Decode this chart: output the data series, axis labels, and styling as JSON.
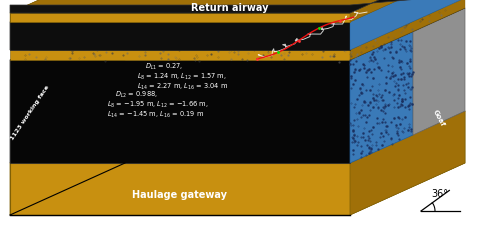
{
  "return_airway_text": "Return airway",
  "haulage_gateway_text": "Haulage gateway",
  "working_face_text": "1123 working face",
  "goaf_text": "Goaf",
  "angle_text": "36°",
  "text_block1_line1": "$D_{L1}$ = 0.27,",
  "text_block1_line2": "$L_8$ = 1.24 m, $L_{12}$ = 1.57 m,",
  "text_block1_line3": "$L_{14}$ = 2.27 m, $L_{16}$ = 3.04 m",
  "text_block2_line1": "$D_{L2}$ = 0.988,",
  "text_block2_line2": "$L_8$ = −1.95 m, $L_{12}$ = −1.66 m,",
  "text_block2_line3": "$L_{14}$ = −1.45 m, $L_{16}$ = 0.19 m",
  "colors": {
    "black_face": "#060606",
    "black_face2": "#0a0a0a",
    "gold_top": "#C89010",
    "gold_mid": "#A07008",
    "gold_dark": "#806005",
    "gold_front": "#B88010",
    "blue_goaf": "#3A7AB8",
    "blue_dark": "#1A4A80",
    "gray_goaf": "#909090",
    "gray_light": "#B0B0B0",
    "gray_side": "#808080",
    "white": "#FFFFFF",
    "black_edge": "#1a1a1a",
    "red_line": "#EE1111",
    "green_dot": "#00EE00",
    "red_dot": "#FF3333",
    "dark_gray": "#333333"
  },
  "figsize": [
    5.0,
    2.41
  ],
  "dpi": 100
}
